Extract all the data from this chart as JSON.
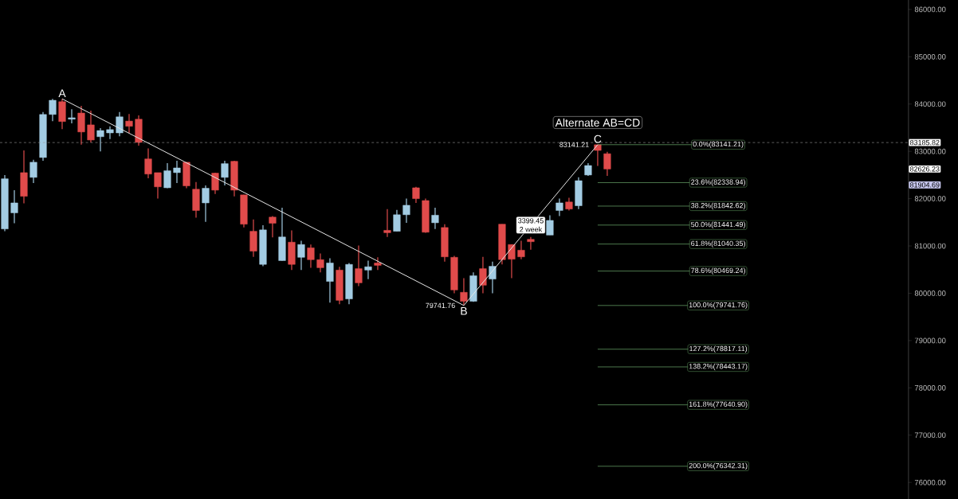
{
  "chart_data": {
    "type": "candlestick",
    "categories": [
      null,
      null,
      null,
      null,
      null,
      null,
      null,
      null,
      null,
      null,
      null,
      null,
      null,
      null,
      null,
      null,
      null,
      null,
      null,
      null,
      null,
      null,
      null,
      null,
      null,
      null,
      null,
      null,
      null,
      null,
      null,
      null,
      null,
      null,
      null,
      null,
      null,
      null,
      null,
      null,
      null,
      null,
      null,
      null,
      null,
      null,
      null,
      null,
      null,
      null,
      null,
      null,
      null,
      null,
      null,
      null,
      null,
      null,
      null,
      null,
      null,
      null,
      null,
      null,
      null,
      null,
      null,
      null,
      null,
      null,
      null,
      null,
      null,
      null,
      null,
      null,
      null,
      null,
      null,
      null,
      null,
      null,
      null,
      null,
      null,
      null,
      null,
      null,
      null,
      null,
      null,
      null,
      null,
      null,
      null
    ],
    "ohlc": [
      [
        81360,
        82500,
        81310,
        82420
      ],
      [
        81700,
        82180,
        81480,
        81910
      ],
      [
        82550,
        83020,
        81900,
        82050
      ],
      [
        82450,
        82820,
        82330,
        82770
      ],
      [
        82870,
        83830,
        82800,
        83780
      ],
      [
        83780,
        84110,
        83640,
        84080
      ],
      [
        84050,
        84110,
        83470,
        83630
      ],
      [
        83680,
        83890,
        83590,
        83710
      ],
      [
        83810,
        83960,
        83140,
        83410
      ],
      [
        83560,
        83860,
        83190,
        83240
      ],
      [
        83310,
        83490,
        83000,
        83440
      ],
      [
        83390,
        83530,
        83260,
        83460
      ],
      [
        83390,
        83830,
        83320,
        83730
      ],
      [
        83640,
        83790,
        83390,
        83530
      ],
      [
        83680,
        83760,
        83120,
        83190
      ],
      [
        82840,
        83060,
        82430,
        82520
      ],
      [
        82550,
        82550,
        82000,
        82250
      ],
      [
        82230,
        82750,
        82220,
        82590
      ],
      [
        82550,
        82800,
        82330,
        82650
      ],
      [
        82770,
        82770,
        82220,
        82270
      ],
      [
        82200,
        82350,
        81600,
        81750
      ],
      [
        81910,
        82280,
        81510,
        82220
      ],
      [
        82540,
        82550,
        82100,
        82180
      ],
      [
        82450,
        82800,
        82280,
        82740
      ],
      [
        82790,
        82800,
        82050,
        82180
      ],
      [
        82080,
        82080,
        81390,
        81460
      ],
      [
        81310,
        81560,
        80770,
        80890
      ],
      [
        80610,
        81440,
        80570,
        81340
      ],
      [
        81610,
        81630,
        81180,
        81480
      ],
      [
        80690,
        81810,
        80690,
        81190
      ],
      [
        81080,
        81330,
        80490,
        80610
      ],
      [
        80760,
        81110,
        80490,
        81030
      ],
      [
        80960,
        81030,
        80540,
        80710
      ],
      [
        80710,
        80840,
        80440,
        80540
      ],
      [
        80250,
        80740,
        79800,
        80640
      ],
      [
        80490,
        80560,
        79770,
        79850
      ],
      [
        79880,
        80640,
        79770,
        80610
      ],
      [
        80520,
        81010,
        80150,
        80220
      ],
      [
        80490,
        80690,
        80300,
        80560
      ],
      [
        80640,
        80760,
        80490,
        80590
      ],
      [
        81330,
        81780,
        81190,
        81280
      ],
      [
        81310,
        81760,
        81310,
        81660
      ],
      [
        81660,
        82000,
        81490,
        81860
      ],
      [
        82230,
        82250,
        81910,
        82000
      ],
      [
        81960,
        82000,
        81280,
        81290
      ],
      [
        81490,
        81810,
        81360,
        81650
      ],
      [
        81390,
        81460,
        80670,
        80770
      ],
      [
        80760,
        80790,
        80000,
        80070
      ],
      [
        80020,
        80320,
        79741.76,
        79830
      ],
      [
        79830,
        80440,
        79820,
        80370
      ],
      [
        80520,
        80770,
        80000,
        80170
      ],
      [
        80300,
        80670,
        80000,
        80570
      ],
      [
        81460,
        81460,
        80610,
        80710
      ],
      [
        81030,
        81030,
        80320,
        80720
      ],
      [
        80910,
        81110,
        80720,
        80770
      ],
      [
        81140,
        81190,
        80920,
        81090
      ],
      null,
      [
        81230,
        81650,
        81230,
        81540
      ],
      [
        81750,
        82000,
        81630,
        81910
      ],
      [
        81930,
        82020,
        81750,
        81780
      ],
      [
        81850,
        82450,
        81780,
        82380
      ],
      [
        82500,
        82750,
        82480,
        82700
      ],
      [
        83140,
        83141.21,
        82690,
        83020
      ],
      [
        82950,
        82990,
        82480,
        82626.23
      ],
      null,
      null,
      null,
      null,
      null,
      null,
      null,
      null,
      null,
      null,
      null,
      null,
      null,
      null,
      null,
      null,
      null,
      null,
      null,
      null,
      null,
      null,
      null,
      null,
      null,
      null,
      null,
      null,
      null,
      null,
      null
    ],
    "colors": [
      "#a3cce3",
      "#a3cce3",
      "#e04b4b",
      "#a3cce3",
      "#a3cce3",
      "#a3cce3",
      "#e04b4b",
      "#a3cce3",
      "#e04b4b",
      "#e04b4b",
      "#a3cce3",
      "#a3cce3",
      "#a3cce3",
      "#e04b4b",
      "#e04b4b",
      "#e04b4b",
      "#e04b4b",
      "#a3cce3",
      "#a3cce3",
      "#e04b4b",
      "#e04b4b",
      "#a3cce3",
      "#e04b4b",
      "#a3cce3",
      "#e04b4b",
      "#e04b4b",
      "#e04b4b",
      "#a3cce3",
      "#e04b4b",
      "#a3cce3",
      "#e04b4b",
      "#a3cce3",
      "#e04b4b",
      "#e04b4b",
      "#a3cce3",
      "#e04b4b",
      "#a3cce3",
      "#e04b4b",
      "#a3cce3",
      "#e04b4b",
      "#e04b4b",
      "#a3cce3",
      "#a3cce3",
      "#e04b4b",
      "#e04b4b",
      "#a3cce3",
      "#e04b4b",
      "#e04b4b",
      "#e04b4b",
      "#a3cce3",
      "#e04b4b",
      "#a3cce3",
      "#e04b4b",
      "#e04b4b",
      "#e04b4b",
      "#e04b4b",
      null,
      "#a3cce3",
      "#a3cce3",
      "#e04b4b",
      "#a3cce3",
      "#a3cce3",
      "#e04b4b",
      "#e04b4b",
      null,
      null,
      null,
      null,
      null,
      null,
      null,
      null,
      null,
      null,
      null,
      null,
      null,
      null,
      null,
      null,
      null,
      null,
      null,
      null,
      null,
      null,
      null,
      null,
      null,
      null,
      null,
      null,
      null,
      null,
      null
    ],
    "series": [
      {
        "type": "line",
        "values": [
          null,
          null,
          null,
          null,
          null,
          null,
          84110,
          null,
          null,
          null,
          null,
          null,
          null,
          null,
          null,
          null,
          null,
          null,
          null,
          null,
          null,
          null,
          null,
          null,
          null,
          null,
          null,
          null,
          null,
          null,
          null,
          null,
          null,
          null,
          null,
          null,
          null,
          null,
          null,
          null,
          null,
          null,
          null,
          null,
          null,
          null,
          null,
          null,
          79741.76,
          null,
          null,
          null,
          null,
          null,
          null,
          null,
          null,
          null,
          null,
          null,
          null,
          null,
          83141.21,
          null,
          null,
          null,
          null,
          null,
          null,
          null,
          null,
          null,
          null,
          null,
          null,
          null,
          null,
          null,
          null,
          null,
          null,
          null,
          null,
          null,
          null,
          null,
          null,
          null,
          null,
          null,
          null,
          null,
          null,
          null,
          null
        ],
        "color": "#e6e6e6",
        "value_labels": [
          null,
          null,
          null,
          null,
          null,
          null,
          null,
          null,
          null,
          null,
          null,
          null,
          null,
          null,
          null,
          null,
          null,
          null,
          null,
          null,
          null,
          null,
          null,
          null,
          null,
          null,
          null,
          null,
          null,
          null,
          null,
          null,
          null,
          null,
          null,
          null,
          null,
          null,
          null,
          null,
          null,
          null,
          null,
          null,
          null,
          null,
          null,
          null,
          "79741.76",
          null,
          null,
          null,
          null,
          null,
          null,
          null,
          null,
          null,
          null,
          null,
          null,
          null,
          "83141.21",
          null,
          null,
          null,
          null,
          null,
          null,
          null,
          null,
          null,
          null,
          null,
          null,
          null,
          null,
          null,
          null,
          null,
          null,
          null,
          null,
          null,
          null,
          null,
          null,
          null,
          null,
          null,
          null,
          null,
          null,
          null,
          null
        ]
      }
    ],
    "ylim": [
      75650,
      86200
    ],
    "yticks": [
      {
        "value": 76000,
        "label": "76000.00"
      },
      {
        "value": 77000,
        "label": "77000.00"
      },
      {
        "value": 78000,
        "label": "78000.00"
      },
      {
        "value": 79000,
        "label": "79000.00"
      },
      {
        "value": 80000,
        "label": "80000.00"
      },
      {
        "value": 81000,
        "label": "81000.00"
      },
      {
        "value": 82000,
        "label": "82000.00"
      },
      {
        "value": 83000,
        "label": "83000.00"
      },
      {
        "value": 84000,
        "label": "84000.00"
      },
      {
        "value": 85000,
        "label": "85000.00"
      },
      {
        "value": 86000,
        "label": "86000.00"
      }
    ],
    "ref_lines": [
      {
        "axis": "y",
        "value": 83141.21,
        "label": "0.0%(83141.21)",
        "color": "#7fc97f"
      },
      {
        "axis": "y",
        "value": 82338.94,
        "label": "23.6%(82338.94)",
        "color": "#7fc97f"
      },
      {
        "axis": "y",
        "value": 81842.62,
        "label": "38.2%(81842.62)",
        "color": "#7fc97f"
      },
      {
        "axis": "y",
        "value": 81441.49,
        "label": "50.0%(81441.49)",
        "color": "#7fc97f"
      },
      {
        "axis": "y",
        "value": 81040.35,
        "label": "61.8%(81040.35)",
        "color": "#7fc97f"
      },
      {
        "axis": "y",
        "value": 80469.24,
        "label": "78.6%(80469.24)",
        "color": "#7fc97f"
      },
      {
        "axis": "y",
        "value": 79741.76,
        "label": "100.0%(79741.76)",
        "color": "#7fc97f"
      },
      {
        "axis": "y",
        "value": 78817.11,
        "label": "127.2%(78817.11)",
        "color": "#7fc97f"
      },
      {
        "axis": "y",
        "value": 78443.17,
        "label": "138.2%(78443.17)",
        "color": "#7fc97f"
      },
      {
        "axis": "y",
        "value": 77640.9,
        "label": "161.8%(77640.90)",
        "color": "#7fc97f"
      },
      {
        "axis": "y",
        "value": 76342.31,
        "label": "200.0%(76342.31)",
        "color": "#7fc97f"
      },
      {
        "axis": "y",
        "value": 83185.82,
        "label": "83185.82",
        "color": "#9a9a9a",
        "line_style": "dashed"
      }
    ],
    "annotations": [
      "A",
      "B",
      "C",
      "Alternate AB=CD",
      "3399.45",
      "2 week",
      "82626.23",
      "81904.69"
    ]
  }
}
